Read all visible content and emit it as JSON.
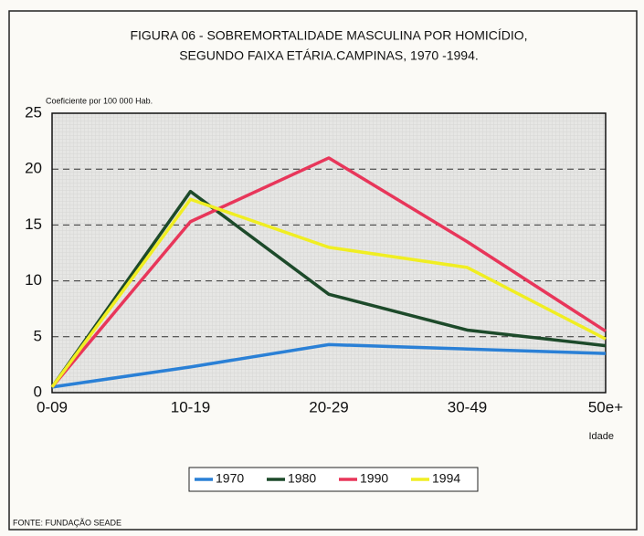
{
  "chart_data": {
    "type": "line",
    "title": [
      "FIGURA 06 - SOBREMORTALIDADE MASCULINA POR HOMICÍDIO,",
      "SEGUNDO FAIXA ETÁRIA.CAMPINAS, 1970 -1994."
    ],
    "y_label": "Coeficiente por 100 000 Hab.",
    "x_label": "Idade",
    "source": "FONTE: FUNDAÇÃO SEADE",
    "categories": [
      "0-09",
      "10-19",
      "20-29",
      "30-49",
      "50e+"
    ],
    "series": [
      {
        "name": "1970",
        "color": "#2a80d6",
        "values": [
          0.5,
          2.3,
          4.3,
          3.9,
          3.5
        ]
      },
      {
        "name": "1980",
        "color": "#1d4a2a",
        "values": [
          0.5,
          18,
          8.8,
          5.6,
          4.2
        ]
      },
      {
        "name": "1990",
        "color": "#e8365a",
        "values": [
          0.5,
          15.3,
          21,
          13.5,
          5.5
        ]
      },
      {
        "name": "1994",
        "color": "#f0ee22",
        "values": [
          0.5,
          17.3,
          13,
          11.2,
          4.8
        ]
      }
    ],
    "ylim": [
      0,
      25
    ],
    "yticks": [
      0,
      5,
      10,
      15,
      20,
      25
    ],
    "grid": true
  }
}
